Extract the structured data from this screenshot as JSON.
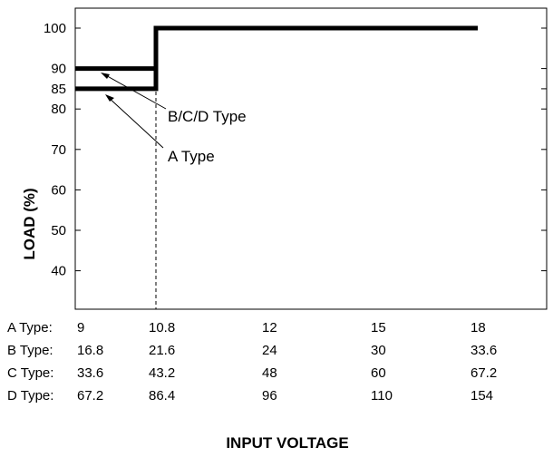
{
  "chart_data": {
    "type": "line",
    "title": "",
    "xlabel": "INPUT VOLTAGE",
    "ylabel": "LOAD (%)",
    "x_positions": [
      "9",
      "10.8",
      "12",
      "15",
      "18"
    ],
    "yticks": [
      "100",
      "90",
      "85",
      "80",
      "70",
      "60",
      "50",
      "40"
    ],
    "ylim": [
      30,
      105
    ],
    "grid": false,
    "voltage_table": [
      {
        "label": "A Type:",
        "values": [
          "9",
          "10.8",
          "12",
          "15",
          "18"
        ]
      },
      {
        "label": "B Type:",
        "values": [
          "16.8",
          "21.6",
          "24",
          "30",
          "33.6"
        ]
      },
      {
        "label": "C Type:",
        "values": [
          "33.6",
          "43.2",
          "48",
          "60",
          "67.2"
        ]
      },
      {
        "label": "D Type:",
        "values": [
          "67.2",
          "86.4",
          "96",
          "110",
          "154"
        ]
      }
    ],
    "series": [
      {
        "name": "B/C/D Type",
        "x": [
          9,
          10.8,
          10.8,
          18
        ],
        "y": [
          90,
          90,
          100,
          100
        ]
      },
      {
        "name": "A Type",
        "x": [
          9,
          10.8,
          10.8,
          18
        ],
        "y": [
          85,
          85,
          100,
          100
        ]
      }
    ],
    "reference_line": {
      "x": 10.8,
      "style": "dashed"
    }
  }
}
